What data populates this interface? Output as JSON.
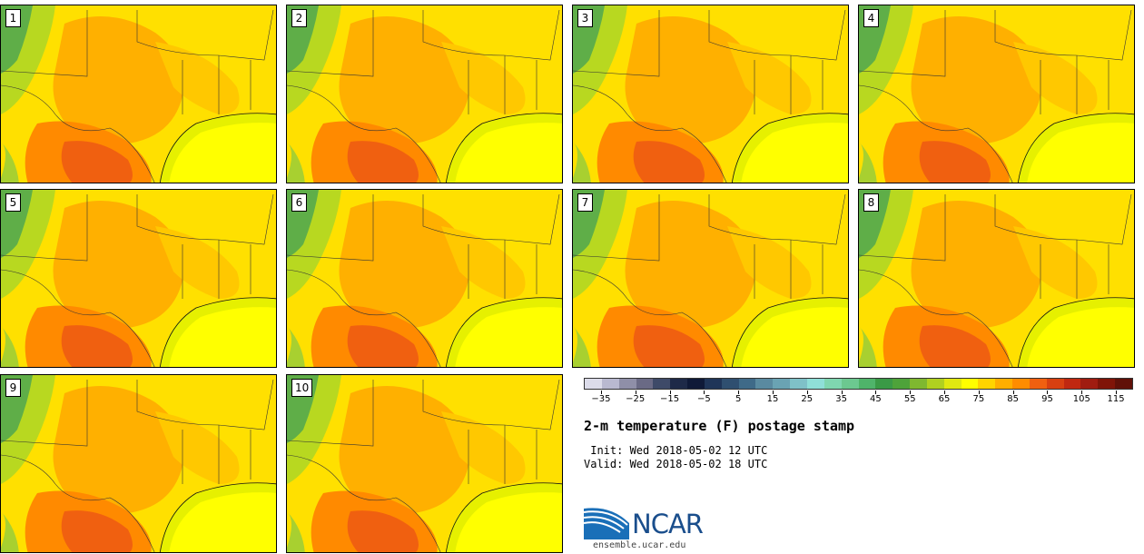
{
  "panels": [
    {
      "label": "1"
    },
    {
      "label": "2"
    },
    {
      "label": "3"
    },
    {
      "label": "4"
    },
    {
      "label": "5"
    },
    {
      "label": "6"
    },
    {
      "label": "7"
    },
    {
      "label": "8"
    },
    {
      "label": "9"
    },
    {
      "label": "10"
    }
  ],
  "colorbar": {
    "colors": [
      "#dcdcea",
      "#b9b9d0",
      "#8f8fa8",
      "#6a6a85",
      "#3e4a68",
      "#1e2a48",
      "#0f1a38",
      "#1f3558",
      "#2f4f70",
      "#3f6a88",
      "#5a8aa0",
      "#6aa3b3",
      "#7fc1c8",
      "#8fdfd8",
      "#7fd6b0",
      "#6cc890",
      "#4fb46a",
      "#3a9a46",
      "#4ea33a",
      "#7fb830",
      "#b0d020",
      "#e0e810",
      "#ffff00",
      "#ffd400",
      "#ffae00",
      "#ff8c00",
      "#f06010",
      "#d84010",
      "#c02810",
      "#a01c10",
      "#801408",
      "#601008"
    ],
    "tick_labels": [
      "−35",
      "−25",
      "−15",
      "−5",
      "5",
      "15",
      "25",
      "35",
      "45",
      "55",
      "65",
      "75",
      "85",
      "95",
      "105",
      "115"
    ]
  },
  "title": "2-m temperature (F) postage stamp",
  "init": " Init: Wed 2018-05-02 12 UTC",
  "valid": "Valid: Wed 2018-05-02 18 UTC",
  "logo": {
    "text": "NCAR",
    "site": "ensemble.ucar.edu"
  }
}
